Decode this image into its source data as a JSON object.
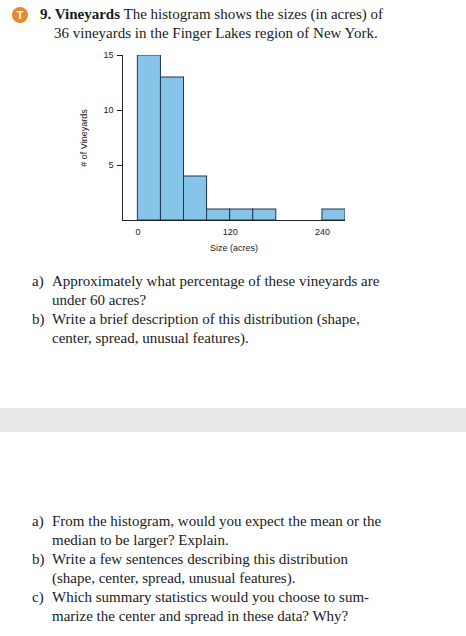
{
  "document": {
    "icon": "T",
    "exercise": {
      "number": "9.",
      "title": "Vineyards",
      "lines": [
        "The histogram shows the sizes (in acres) of",
        "36 vineyards in the Finger Lakes region of New York."
      ]
    },
    "questions_1": [
      {
        "label": "a)",
        "lines": [
          "Approximately what percentage of these vineyards are",
          "under 60 acres?"
        ]
      },
      {
        "label": "b)",
        "lines": [
          "Write a brief description of this distribution (shape,",
          "center, spread, unusual features)."
        ]
      }
    ],
    "questions_2": [
      {
        "label": "a)",
        "lines": [
          "From the histogram, would you expect the mean or the",
          "median to be larger? Explain."
        ]
      },
      {
        "label": "b)",
        "lines": [
          "Write a few sentences describing this distribution",
          "(shape, center, spread, unusual features)."
        ]
      },
      {
        "label": "c)",
        "lines": [
          "Which summary statistics would you choose to sum-",
          "marize the center and spread in these data? Why?"
        ]
      }
    ]
  },
  "chart_data": {
    "type": "histogram",
    "x_label": "Size (acres)",
    "y_label": "# of Vineyards",
    "bins": [
      0,
      30,
      60,
      90,
      120,
      150,
      180,
      210,
      240,
      270
    ],
    "values": [
      15,
      13,
      4,
      1,
      1,
      1,
      0,
      0,
      1
    ],
    "color": "#86c5e8",
    "xlim": [
      -20,
      270
    ],
    "xticks": [
      0,
      120,
      240
    ],
    "ylim": [
      0,
      15
    ],
    "yticks": [
      5,
      10,
      15
    ]
  }
}
